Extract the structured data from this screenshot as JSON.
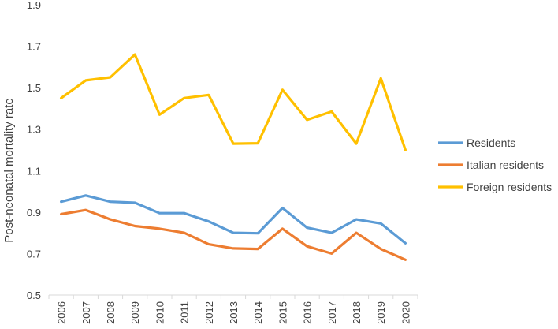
{
  "chart_data": {
    "type": "line",
    "title": "",
    "xlabel": "",
    "ylabel": "Post-neonatal mortality rate",
    "categories": [
      "2006",
      "2007",
      "2008",
      "2009",
      "2010",
      "2011",
      "2012",
      "2013",
      "2014",
      "2015",
      "2016",
      "2017",
      "2018",
      "2019",
      "2020"
    ],
    "ylim": [
      0.5,
      1.9
    ],
    "yticks": [
      "0.5",
      "0.7",
      "0.9",
      "1.1",
      "1.3",
      "1.5",
      "1.7",
      "1.9"
    ],
    "grid": false,
    "legend_position": "right",
    "series": [
      {
        "name": "Residents",
        "color": "#5B9BD5",
        "values": [
          0.95,
          0.98,
          0.95,
          0.945,
          0.895,
          0.895,
          0.855,
          0.8,
          0.798,
          0.92,
          0.825,
          0.8,
          0.865,
          0.845,
          0.75
        ]
      },
      {
        "name": "Italian residents",
        "color": "#ED7D31",
        "values": [
          0.89,
          0.91,
          0.865,
          0.833,
          0.82,
          0.8,
          0.745,
          0.725,
          0.722,
          0.82,
          0.735,
          0.7,
          0.8,
          0.722,
          0.67
        ]
      },
      {
        "name": "Foreign residents",
        "color": "#FFC000",
        "values": [
          1.45,
          1.535,
          1.55,
          1.66,
          1.37,
          1.45,
          1.465,
          1.23,
          1.232,
          1.49,
          1.345,
          1.385,
          1.23,
          1.545,
          1.2
        ]
      }
    ]
  }
}
